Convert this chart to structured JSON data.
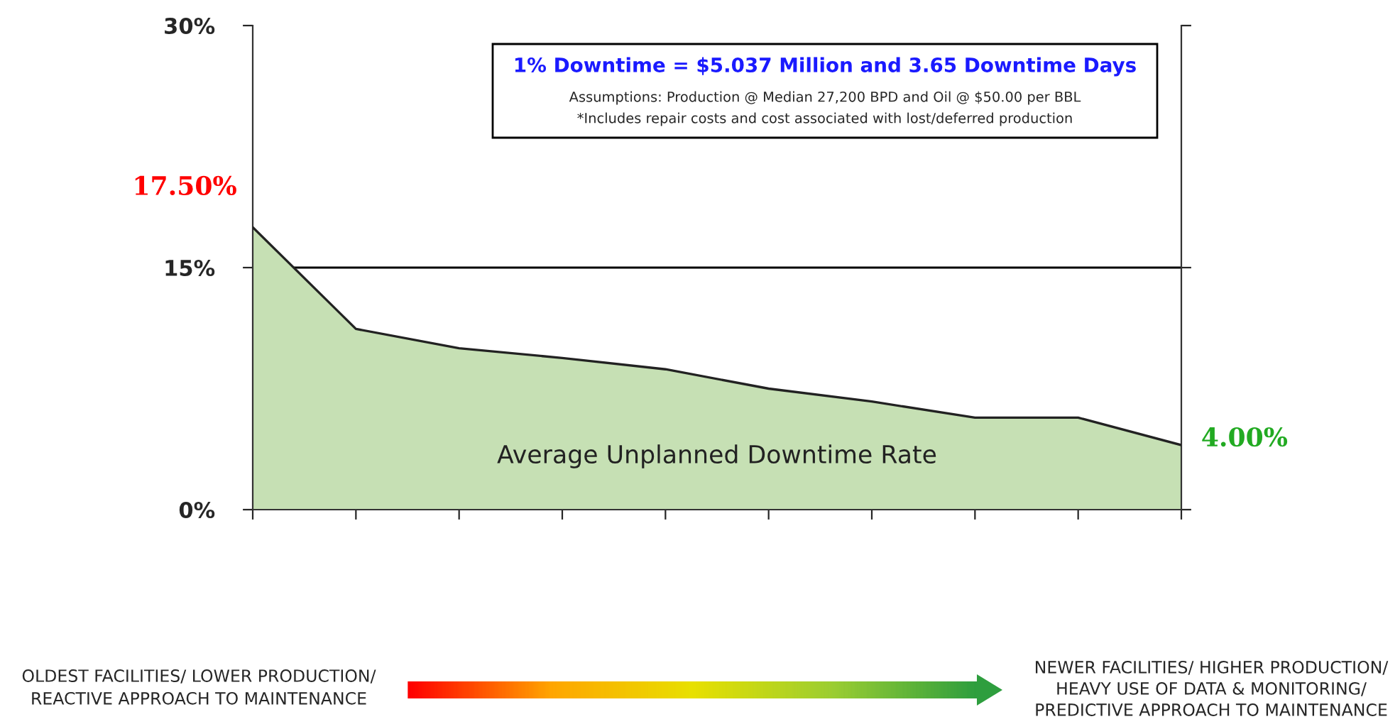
{
  "chart_data": {
    "type": "area",
    "categories": [
      null,
      null,
      null,
      null,
      null,
      null,
      null,
      null,
      null,
      null
    ],
    "series": [
      {
        "color": "#c6e0b4",
        "values": [
          17.5,
          11.2,
          10.0,
          9.4,
          8.7,
          7.5,
          6.7,
          5.7,
          5.7,
          4.0
        ]
      }
    ],
    "ylim": [
      0,
      30
    ],
    "yticks": [
      {
        "value": 0,
        "label": "0%"
      },
      {
        "value": 15,
        "label": "15%"
      },
      {
        "value": 30,
        "label": "30%"
      }
    ],
    "ref_lines": [
      {
        "axis": "y",
        "value": 15,
        "color": "#000000"
      }
    ],
    "grid": false,
    "legend": false,
    "annotations": [
      "1% Downtime = $5.037 Million and 3.65 Downtime Days",
      "Assumptions: Production @ Median 27,200 BPD and Oil @ $50.00 per BBL",
      "*Includes repair costs and cost associated with lost/deferred production",
      "Average Unplanned Downtime Rate",
      "17.50%",
      "4.00%",
      "OLDEST FACILITIES/ LOWER PRODUCTION/\nREACTIVE APPROACH TO MAINTENANCE",
      "NEWER FACILITIES/ HIGHER PRODUCTION/\nHEAVY USE OF DATA & MONITORING/\nPREDICTIVE APPROACH TO MAINTENANCE"
    ]
  }
}
